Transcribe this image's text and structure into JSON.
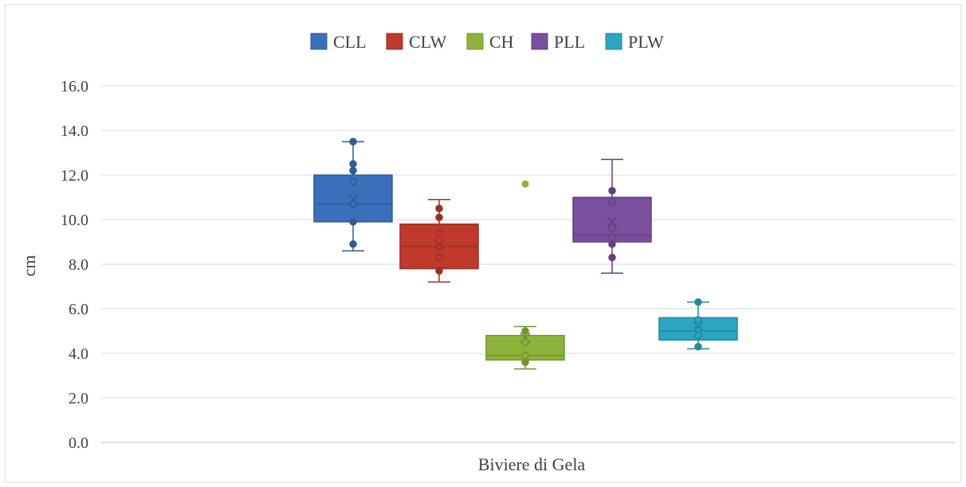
{
  "chart_data": {
    "type": "boxplot",
    "title": "",
    "xlabel": "Biviere di Gela",
    "ylabel": "cm",
    "ylim": [
      0,
      16
    ],
    "yticks": [
      "0.0",
      "2.0",
      "4.0",
      "6.0",
      "8.0",
      "10.0",
      "12.0",
      "14.0",
      "16.0"
    ],
    "grid": true,
    "legend_position": "top",
    "categories": [
      "Biviere di Gela"
    ],
    "series": [
      {
        "name": "CLL",
        "color": "#3a6fbb",
        "stats": {
          "min": 8.6,
          "q1": 9.9,
          "median": 10.7,
          "q3": 12.0,
          "max": 13.5,
          "mean": 10.9
        },
        "points": [
          8.9,
          9.9,
          10.7,
          11.7,
          12.2,
          12.5,
          13.5
        ],
        "outliers": []
      },
      {
        "name": "CLW",
        "color": "#c0392b",
        "stats": {
          "min": 7.2,
          "q1": 7.8,
          "median": 8.8,
          "q3": 9.8,
          "max": 10.9,
          "mean": 8.9
        },
        "points": [
          7.7,
          8.3,
          8.8,
          9.4,
          10.1,
          10.5
        ],
        "outliers": []
      },
      {
        "name": "CH",
        "color": "#8db33a",
        "stats": {
          "min": 3.3,
          "q1": 3.7,
          "median": 3.9,
          "q3": 4.8,
          "max": 5.2,
          "mean": 4.7
        },
        "points": [
          3.6,
          3.9,
          4.5,
          5.0
        ],
        "outliers": [
          11.6
        ]
      },
      {
        "name": "PLL",
        "color": "#7a4f9e",
        "stats": {
          "min": 7.6,
          "q1": 9.0,
          "median": 9.3,
          "q3": 11.0,
          "max": 12.7,
          "mean": 9.9
        },
        "points": [
          8.3,
          8.9,
          9.2,
          9.6,
          10.8,
          11.3
        ],
        "outliers": []
      },
      {
        "name": "PLW",
        "color": "#2aa6c4",
        "stats": {
          "min": 4.2,
          "q1": 4.6,
          "median": 5.0,
          "q3": 5.6,
          "max": 6.3,
          "mean": 5.2
        },
        "points": [
          4.3,
          4.8,
          5.1,
          5.5,
          6.3
        ],
        "outliers": []
      }
    ]
  }
}
